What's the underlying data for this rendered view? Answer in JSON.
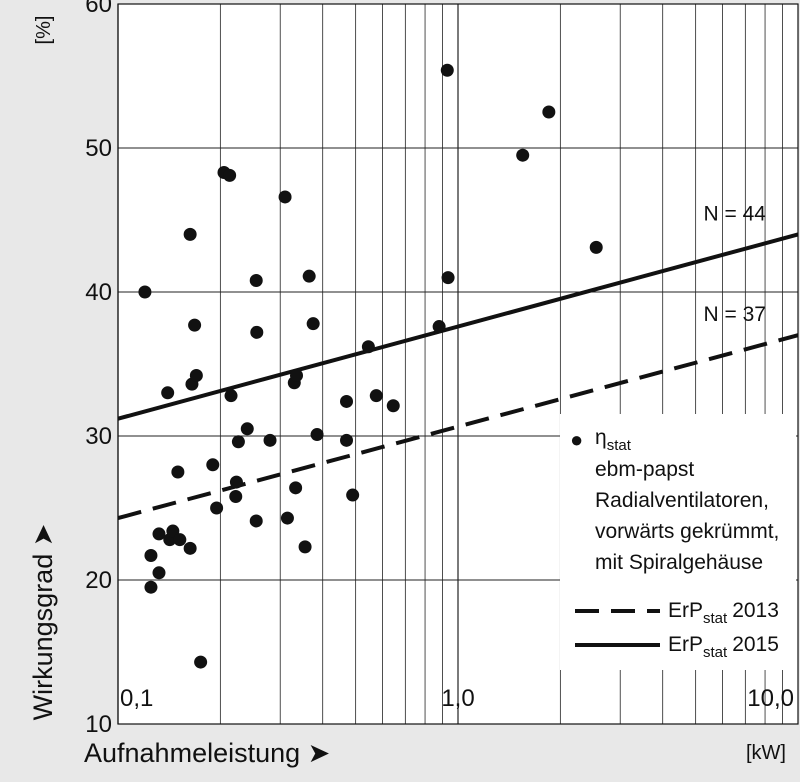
{
  "chart_data": {
    "type": "scatter",
    "title": "",
    "xlabel": "Aufnahmeleistung ➤",
    "xunit": "[kW]",
    "ylabel": "Wirkungsgrad ➤",
    "yunit": "[%]",
    "x_scale": "log",
    "xlim": [
      0.1,
      10.0
    ],
    "ylim": [
      10,
      60
    ],
    "grid": true,
    "y_ticks": [
      "10",
      "20",
      "30",
      "40",
      "50",
      "60"
    ],
    "x_ticks": [
      {
        "value": 0.1,
        "label": "0,1"
      },
      {
        "value": 1.0,
        "label": "1,0"
      },
      {
        "value": 10.0,
        "label": "10,0"
      }
    ],
    "legend_position": "bottom-right",
    "legend": {
      "symbol": "●",
      "eta": "η",
      "stat": "stat",
      "description": [
        "ebm-papst",
        "Radialventilatoren,",
        "vorwärts gekrümmt,",
        "mit Spiralgehäuse"
      ],
      "erp": "ErP",
      "year_2013": "2013",
      "year_2015": "2015"
    },
    "series": [
      {
        "name": "ηstat ebm-papst Radialventilatoren, vorwärts gekrümmt, mit Spiralgehäuse",
        "kind": "scatter",
        "points": [
          [
            0.12,
            40.0
          ],
          [
            0.125,
            21.7
          ],
          [
            0.125,
            19.5
          ],
          [
            0.132,
            23.2
          ],
          [
            0.132,
            20.5
          ],
          [
            0.14,
            33.0
          ],
          [
            0.142,
            22.8
          ],
          [
            0.145,
            23.4
          ],
          [
            0.15,
            27.5
          ],
          [
            0.152,
            22.8
          ],
          [
            0.163,
            44.0
          ],
          [
            0.163,
            22.2
          ],
          [
            0.165,
            33.6
          ],
          [
            0.168,
            37.7
          ],
          [
            0.17,
            34.2
          ],
          [
            0.175,
            14.3
          ],
          [
            0.19,
            28.0
          ],
          [
            0.195,
            25.0
          ],
          [
            0.205,
            48.3
          ],
          [
            0.213,
            48.1
          ],
          [
            0.215,
            32.8
          ],
          [
            0.222,
            25.8
          ],
          [
            0.223,
            26.8
          ],
          [
            0.226,
            29.6
          ],
          [
            0.24,
            30.5
          ],
          [
            0.255,
            40.8
          ],
          [
            0.256,
            37.2
          ],
          [
            0.255,
            24.1
          ],
          [
            0.28,
            29.7
          ],
          [
            0.31,
            46.6
          ],
          [
            0.315,
            24.3
          ],
          [
            0.33,
            33.7
          ],
          [
            0.335,
            34.2
          ],
          [
            0.333,
            26.4
          ],
          [
            0.355,
            22.3
          ],
          [
            0.365,
            41.1
          ],
          [
            0.375,
            37.8
          ],
          [
            0.385,
            30.1
          ],
          [
            0.47,
            32.4
          ],
          [
            0.47,
            29.7
          ],
          [
            0.49,
            25.9
          ],
          [
            0.545,
            36.2
          ],
          [
            0.575,
            32.8
          ],
          [
            0.645,
            32.1
          ],
          [
            0.88,
            37.6
          ],
          [
            0.93,
            55.4
          ],
          [
            0.935,
            41.0
          ],
          [
            1.55,
            49.5
          ],
          [
            1.85,
            52.5
          ],
          [
            2.55,
            43.1
          ]
        ]
      },
      {
        "name": "ErP 2013",
        "kind": "line",
        "dash": "dashed",
        "label": "N = 37",
        "points": [
          [
            0.1,
            24.3
          ],
          [
            10.0,
            37.0
          ]
        ]
      },
      {
        "name": "ErP 2015",
        "kind": "line",
        "dash": "solid",
        "label": "N = 44",
        "points": [
          [
            0.1,
            31.2
          ],
          [
            10.0,
            44.0
          ]
        ]
      }
    ]
  }
}
